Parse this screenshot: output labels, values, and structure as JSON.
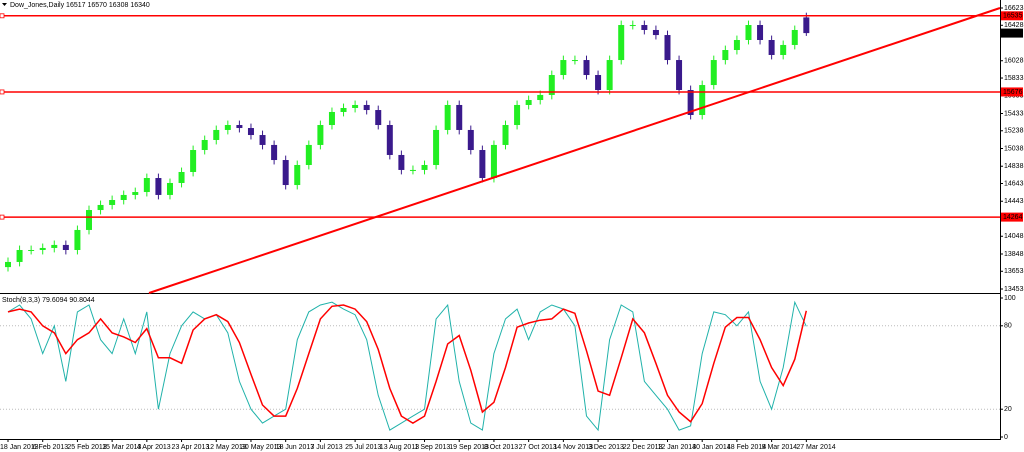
{
  "chart_data": [
    {
      "type": "candlestick",
      "symbol": "Dow_Jones,Daily",
      "bull_color": "#22ee22",
      "bear_color": "#3a1a8c",
      "categories": [
        "18 Jan 2013",
        null,
        null,
        "6 Feb 2013",
        null,
        null,
        "25 Feb 2013",
        null,
        null,
        "15 Mar 2013",
        null,
        null,
        "4 Apr 2013",
        null,
        null,
        "23 Apr 2013",
        null,
        null,
        "12 May 2013",
        null,
        null,
        "30 May 2013",
        null,
        null,
        "18 Jun 2013",
        null,
        null,
        "7 Jul 2013",
        null,
        null,
        "25 Jul 2013",
        null,
        null,
        "13 Aug 2013",
        null,
        null,
        "1 Sep 2013",
        null,
        null,
        "19 Sep 2013",
        null,
        null,
        "8 Oct 2013",
        null,
        null,
        "27 Oct 2013",
        null,
        null,
        "14 Nov 2013",
        null,
        null,
        "3 Dec 2013",
        null,
        null,
        "22 Dec 2013",
        null,
        null,
        "12 Jan 2014",
        null,
        null,
        "30 Jan 2014",
        null,
        null,
        "18 Feb 2014",
        null,
        null,
        "9 Mar 2014",
        null,
        null,
        "27 Mar 2014"
      ],
      "open": [
        13700,
        13758,
        13893,
        13893,
        13916,
        13950,
        13893,
        14119,
        14344,
        14401,
        14457,
        14514,
        14547,
        14705,
        14514,
        14649,
        14773,
        15021,
        15134,
        15247,
        15303,
        15269,
        15190,
        15078,
        14908,
        14626,
        14852,
        15078,
        15303,
        15450,
        15495,
        15529,
        15472,
        15303,
        14965,
        14796,
        14796,
        14852,
        15247,
        15529,
        15247,
        15021,
        14705,
        15078,
        15303,
        15529,
        15585,
        15642,
        15867,
        16036,
        16036,
        15867,
        15698,
        16036,
        16431,
        16431,
        16375,
        16318,
        16036,
        15698,
        15416,
        15754,
        16036,
        16149,
        16262,
        16431,
        16262,
        16093,
        16206,
        16517
      ],
      "high": [
        13808,
        13943,
        13943,
        13966,
        14000,
        14000,
        14169,
        14394,
        14451,
        14507,
        14564,
        14597,
        14755,
        14755,
        14699,
        14823,
        15071,
        15184,
        15297,
        15353,
        15353,
        15319,
        15240,
        15128,
        14958,
        14902,
        15128,
        15353,
        15500,
        15545,
        15579,
        15579,
        15522,
        15353,
        15015,
        14846,
        14902,
        15297,
        15579,
        15579,
        15297,
        15071,
        15128,
        15353,
        15579,
        15635,
        15692,
        15917,
        16086,
        16086,
        16086,
        15917,
        16086,
        16481,
        16481,
        16481,
        16425,
        16368,
        16086,
        15748,
        15804,
        16086,
        16199,
        16312,
        16481,
        16481,
        16312,
        16256,
        16425,
        16570
      ],
      "low": [
        13650,
        13708,
        13843,
        13843,
        13866,
        13843,
        13843,
        14069,
        14294,
        14351,
        14407,
        14464,
        14497,
        14464,
        14464,
        14599,
        14723,
        14971,
        15084,
        15197,
        15219,
        15140,
        15028,
        14858,
        14576,
        14576,
        14802,
        15028,
        15253,
        15400,
        15445,
        15422,
        15253,
        14915,
        14746,
        14746,
        14746,
        14802,
        15197,
        15197,
        14971,
        14655,
        14655,
        15028,
        15253,
        15479,
        15535,
        15592,
        15817,
        15986,
        15817,
        15648,
        15648,
        15986,
        16381,
        16325,
        16268,
        15986,
        15648,
        15366,
        15366,
        15704,
        15986,
        16099,
        16212,
        16212,
        16043,
        16043,
        16156,
        16308
      ],
      "close": [
        13758,
        13893,
        13893,
        13916,
        13950,
        13893,
        14119,
        14344,
        14401,
        14457,
        14514,
        14547,
        14705,
        14514,
        14649,
        14773,
        15021,
        15134,
        15247,
        15303,
        15269,
        15190,
        15078,
        14908,
        14626,
        14852,
        15078,
        15303,
        15450,
        15495,
        15529,
        15472,
        15303,
        14965,
        14796,
        14796,
        14852,
        15247,
        15529,
        15247,
        15021,
        14705,
        15078,
        15303,
        15529,
        15585,
        15642,
        15867,
        16036,
        16036,
        15867,
        15698,
        16036,
        16431,
        16431,
        16375,
        16318,
        16036,
        15698,
        15416,
        15754,
        16036,
        16149,
        16262,
        16431,
        16262,
        16093,
        16206,
        16375,
        16340
      ],
      "ylim": [
        13453,
        16623
      ],
      "yticks": [
        16623,
        16428,
        16028,
        15833,
        15633,
        15433,
        15238,
        15038,
        14838,
        14643,
        14443,
        14048,
        13848,
        13653,
        13453
      ],
      "hlines": [
        {
          "value": 16535,
          "color": "#ff0000"
        },
        {
          "value": 15676,
          "color": "#ff0000"
        },
        {
          "value": 14264,
          "color": "#ff0000"
        }
      ]
    },
    {
      "type": "line",
      "name": "Stoch(8,3,3)",
      "ylim": [
        0,
        100
      ],
      "yticks": [
        100,
        80,
        20,
        0
      ],
      "levels": [
        80,
        20
      ],
      "series": [
        {
          "color": "#20b2aa",
          "values": [
            90,
            95,
            85,
            60,
            80,
            40,
            90,
            95,
            70,
            60,
            85,
            60,
            90,
            20,
            60,
            80,
            90,
            85,
            88,
            75,
            40,
            20,
            10,
            15,
            20,
            70,
            90,
            95,
            97,
            92,
            88,
            70,
            30,
            5,
            10,
            15,
            20,
            85,
            95,
            40,
            10,
            5,
            60,
            85,
            92,
            70,
            90,
            95,
            92,
            80,
            15,
            5,
            70,
            95,
            90,
            40,
            30,
            20,
            5,
            8,
            60,
            90,
            88,
            80,
            90,
            40,
            20,
            50,
            97,
            79.6094
          ]
        },
        {
          "color": "#ff0000",
          "values": [
            90,
            92,
            90,
            80,
            75,
            60,
            70,
            75,
            85,
            75,
            72,
            68,
            78,
            57,
            57,
            53,
            77,
            85,
            88,
            83,
            68,
            45,
            23,
            15,
            15,
            35,
            60,
            85,
            94,
            95,
            92,
            83,
            63,
            35,
            15,
            10,
            15,
            40,
            67,
            73,
            48,
            18,
            25,
            50,
            79,
            82,
            84,
            85,
            92,
            89,
            62,
            33,
            30,
            57,
            85,
            75,
            53,
            30,
            18,
            11,
            24,
            53,
            79,
            86,
            86,
            70,
            50,
            37,
            56,
            90.8044
          ]
        }
      ]
    }
  ]
}
